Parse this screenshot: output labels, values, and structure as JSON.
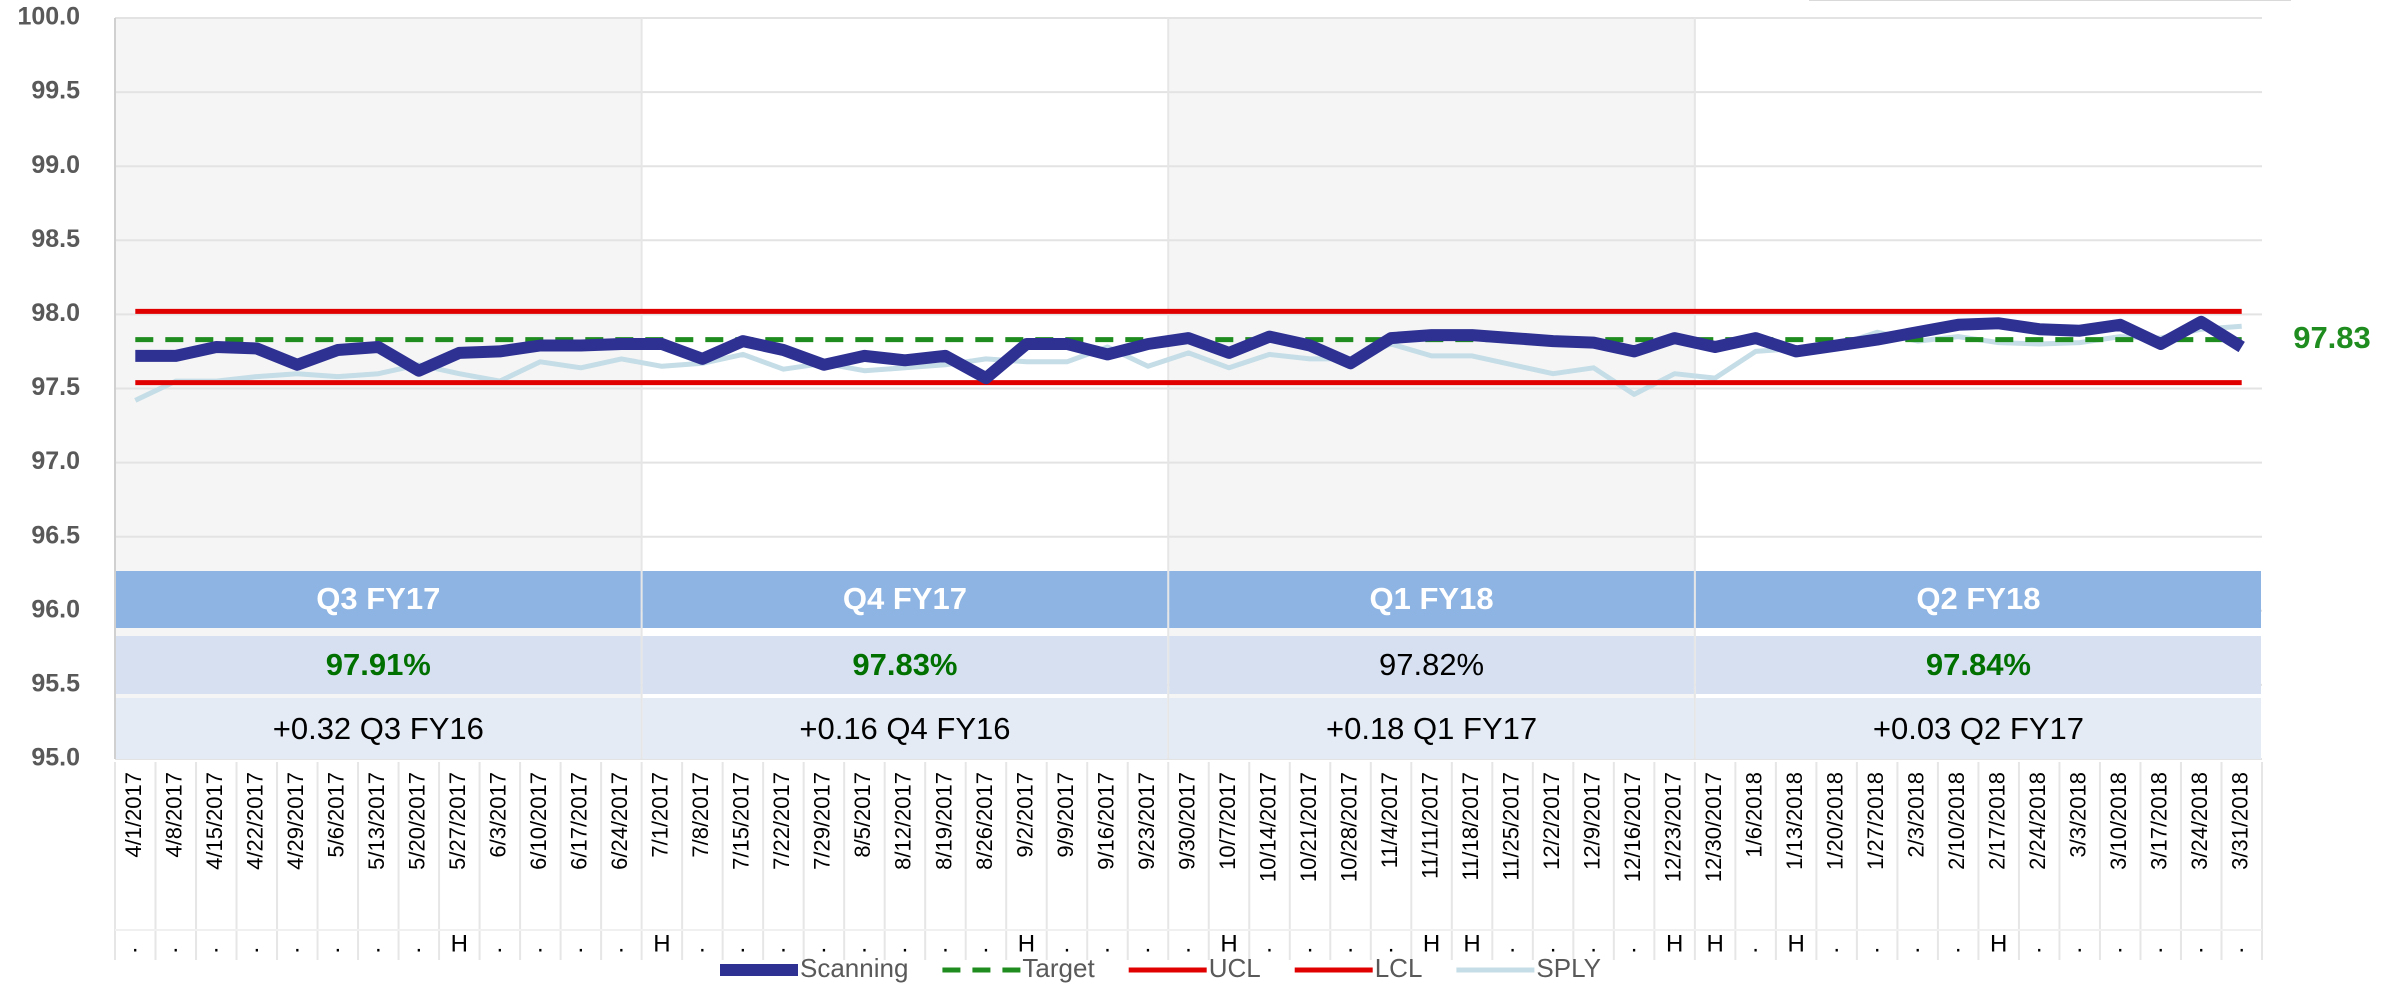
{
  "chart_data": {
    "type": "line",
    "categories": [
      "4/1/2017",
      "4/8/2017",
      "4/15/2017",
      "4/22/2017",
      "4/29/2017",
      "5/6/2017",
      "5/13/2017",
      "5/20/2017",
      "5/27/2017",
      "6/3/2017",
      "6/10/2017",
      "6/17/2017",
      "6/24/2017",
      "7/1/2017",
      "7/8/2017",
      "7/15/2017",
      "7/22/2017",
      "7/29/2017",
      "8/5/2017",
      "8/12/2017",
      "8/19/2017",
      "8/26/2017",
      "9/2/2017",
      "9/9/2017",
      "9/16/2017",
      "9/23/2017",
      "9/30/2017",
      "10/7/2017",
      "10/14/2017",
      "10/21/2017",
      "10/28/2017",
      "11/4/2017",
      "11/11/2017",
      "11/18/2017",
      "11/25/2017",
      "12/2/2017",
      "12/9/2017",
      "12/16/2017",
      "12/23/2017",
      "12/30/2017",
      "1/6/2018",
      "1/13/2018",
      "1/20/2018",
      "1/27/2018",
      "2/3/2018",
      "2/10/2018",
      "2/17/2018",
      "2/24/2018",
      "3/3/2018",
      "3/10/2018",
      "3/17/2018",
      "3/24/2018",
      "3/31/2018"
    ],
    "holidays": [
      ".",
      ".",
      ".",
      ".",
      ".",
      ".",
      ".",
      ".",
      "H",
      ".",
      ".",
      ".",
      ".",
      "H",
      ".",
      ".",
      ".",
      ".",
      ".",
      ".",
      ".",
      ".",
      "H",
      ".",
      ".",
      ".",
      ".",
      "H",
      ".",
      ".",
      ".",
      ".",
      "H",
      "H",
      ".",
      ".",
      ".",
      ".",
      "H",
      "H",
      ".",
      "H",
      ".",
      ".",
      ".",
      ".",
      "H",
      ".",
      ".",
      ".",
      ".",
      ".",
      "."
    ],
    "series": [
      {
        "name": "Scanning",
        "color": "#2e3192",
        "width": 12,
        "values": [
          97.72,
          97.72,
          97.78,
          97.77,
          97.66,
          97.76,
          97.78,
          97.62,
          97.74,
          97.75,
          97.79,
          97.79,
          97.8,
          97.8,
          97.7,
          97.82,
          97.76,
          97.66,
          97.72,
          97.69,
          97.72,
          97.57,
          97.8,
          97.8,
          97.73,
          97.8,
          97.84,
          97.74,
          97.85,
          97.79,
          97.67,
          97.84,
          97.86,
          97.86,
          97.84,
          97.82,
          97.81,
          97.75,
          97.84,
          97.78,
          97.84,
          97.75,
          97.79,
          97.83,
          97.88,
          97.93,
          97.94,
          97.9,
          97.89,
          97.93,
          97.8,
          97.95,
          97.78
        ]
      },
      {
        "name": "Target",
        "color": "#1e8c1e",
        "width": 5,
        "dashed": true,
        "values": [
          97.83,
          97.83,
          97.83,
          97.83,
          97.83,
          97.83,
          97.83,
          97.83,
          97.83,
          97.83,
          97.83,
          97.83,
          97.83,
          97.83,
          97.83,
          97.83,
          97.83,
          97.83,
          97.83,
          97.83,
          97.83,
          97.83,
          97.83,
          97.83,
          97.83,
          97.83,
          97.83,
          97.83,
          97.83,
          97.83,
          97.83,
          97.83,
          97.83,
          97.83,
          97.83,
          97.83,
          97.83,
          97.83,
          97.83,
          97.83,
          97.83,
          97.83,
          97.83,
          97.83,
          97.83,
          97.83,
          97.83,
          97.83,
          97.83,
          97.83,
          97.83,
          97.83,
          97.83
        ]
      },
      {
        "name": "UCL",
        "color": "#e00000",
        "width": 5,
        "values": [
          98.02,
          98.02,
          98.02,
          98.02,
          98.02,
          98.02,
          98.02,
          98.02,
          98.02,
          98.02,
          98.02,
          98.02,
          98.02,
          98.02,
          98.02,
          98.02,
          98.02,
          98.02,
          98.02,
          98.02,
          98.02,
          98.02,
          98.02,
          98.02,
          98.02,
          98.02,
          98.02,
          98.02,
          98.02,
          98.02,
          98.02,
          98.02,
          98.02,
          98.02,
          98.02,
          98.02,
          98.02,
          98.02,
          98.02,
          98.02,
          98.02,
          98.02,
          98.02,
          98.02,
          98.02,
          98.02,
          98.02,
          98.02,
          98.02,
          98.02,
          98.02,
          98.02,
          98.02
        ]
      },
      {
        "name": "LCL",
        "color": "#e00000",
        "width": 5,
        "values": [
          97.54,
          97.54,
          97.54,
          97.54,
          97.54,
          97.54,
          97.54,
          97.54,
          97.54,
          97.54,
          97.54,
          97.54,
          97.54,
          97.54,
          97.54,
          97.54,
          97.54,
          97.54,
          97.54,
          97.54,
          97.54,
          97.54,
          97.54,
          97.54,
          97.54,
          97.54,
          97.54,
          97.54,
          97.54,
          97.54,
          97.54,
          97.54,
          97.54,
          97.54,
          97.54,
          97.54,
          97.54,
          97.54,
          97.54,
          97.54,
          97.54,
          97.54,
          97.54,
          97.54,
          97.54,
          97.54,
          97.54,
          97.54,
          97.54,
          97.54,
          97.54,
          97.54,
          97.54
        ]
      },
      {
        "name": "SPLY",
        "color": "#c5dde6",
        "width": 5,
        "values": [
          97.42,
          97.55,
          97.55,
          97.58,
          97.6,
          97.58,
          97.6,
          97.66,
          97.6,
          97.55,
          97.68,
          97.64,
          97.7,
          97.65,
          97.67,
          97.73,
          97.63,
          97.67,
          97.62,
          97.64,
          97.66,
          97.7,
          97.68,
          97.68,
          97.78,
          97.65,
          97.74,
          97.64,
          97.73,
          97.7,
          97.7,
          97.8,
          97.72,
          97.72,
          97.66,
          97.6,
          97.64,
          97.46,
          97.6,
          97.57,
          97.75,
          97.77,
          97.79,
          97.88,
          97.82,
          97.85,
          97.81,
          97.8,
          97.81,
          97.85,
          97.84,
          97.9,
          97.92
        ]
      }
    ],
    "ylim": [
      95,
      100
    ],
    "yticks": [
      {
        "value": 95,
        "label": "95.0"
      },
      95.5,
      {
        "value": 96,
        "label": "96.0"
      },
      96.5,
      {
        "value": 97,
        "label": "97.0"
      },
      97.5,
      {
        "value": 98,
        "label": "98.0"
      },
      98.5,
      {
        "value": 99,
        "label": "99.0"
      },
      99.5,
      {
        "value": 100,
        "label": "100.0"
      }
    ],
    "grid": true,
    "legend": "bottom",
    "quarters": [
      {
        "name": "Q3 FY17",
        "value": "97.91%",
        "comparison": "+0.32 Q3 FY16",
        "color": "#007000"
      },
      {
        "name": "Q4 FY17",
        "value": "97.83%",
        "comparison": "+0.16 Q4 FY16",
        "color": "#007000"
      },
      {
        "name": "Q1 FY18",
        "value": "97.82%",
        "comparison": "+0.18 Q1 FY17",
        "color": "#000000"
      },
      {
        "name": "Q2 FY18",
        "value": "97.84%",
        "comparison": "+0.03 Q2 FY17",
        "color": "#007000"
      }
    ]
  }
}
